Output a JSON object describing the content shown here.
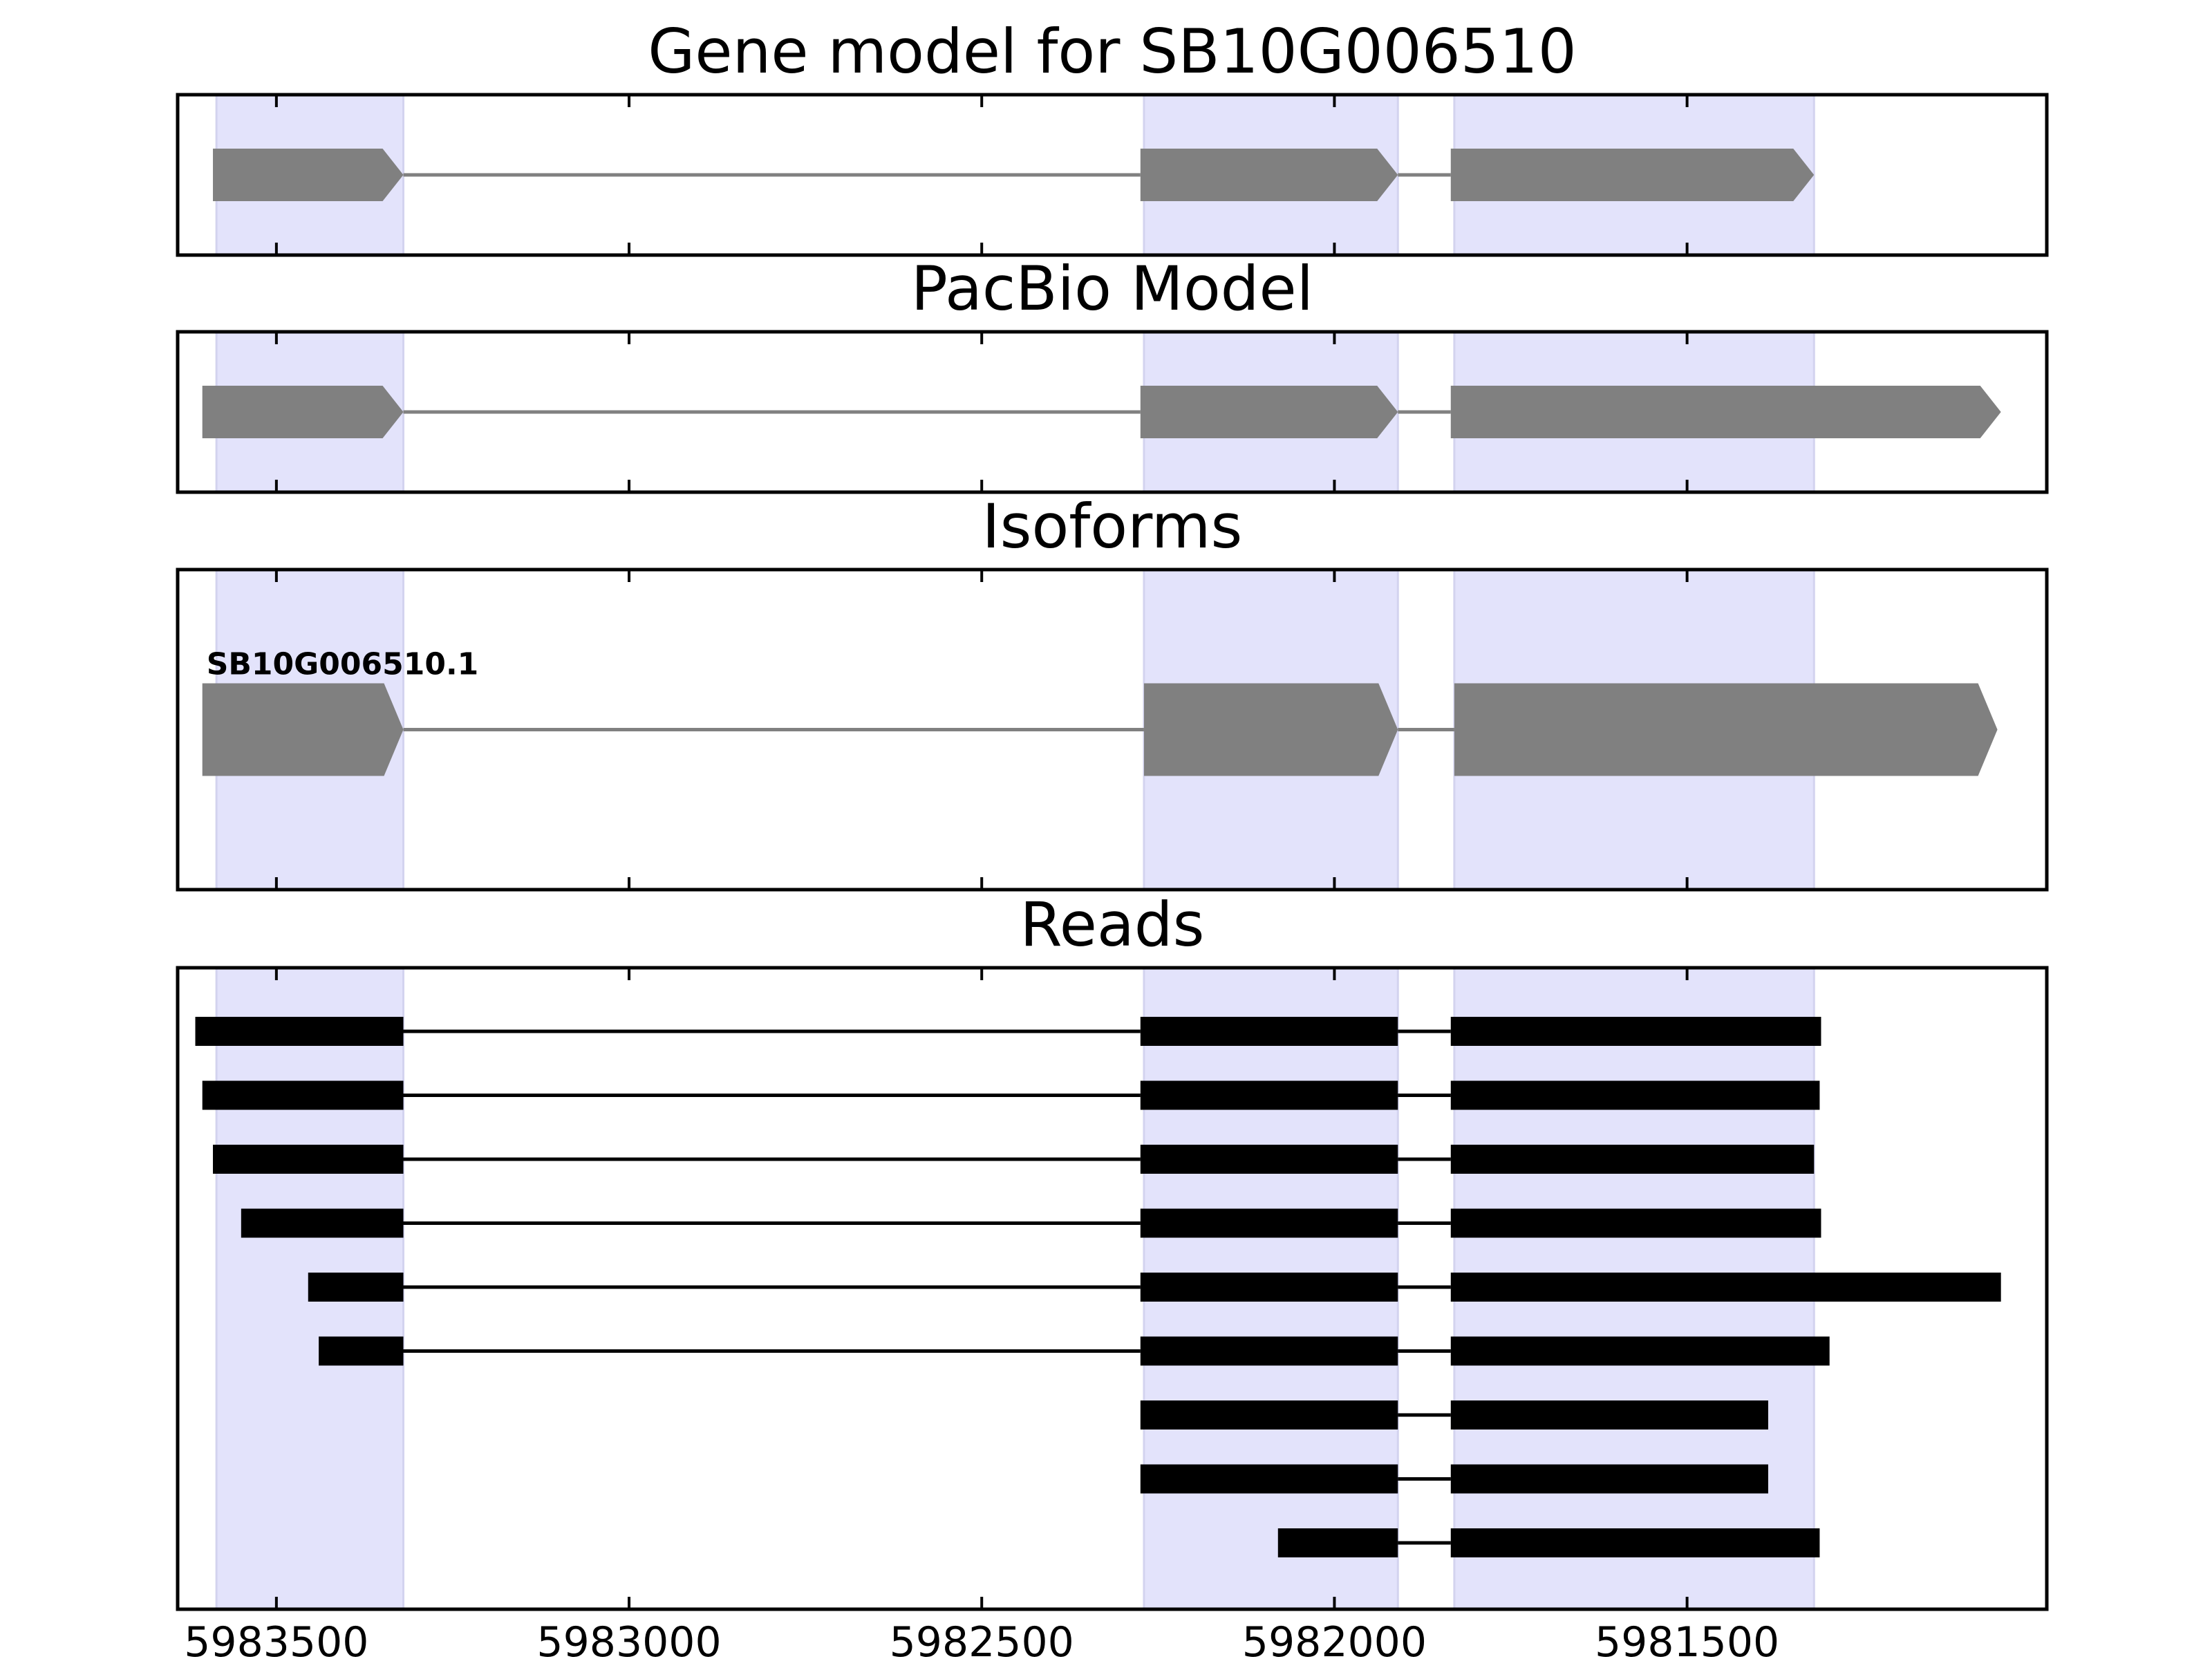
{
  "chart_data": {
    "type": "gene-structure",
    "xlim": [
      5983640,
      5980990
    ],
    "x_ticks": [
      5983500,
      5983000,
      5982500,
      5982000,
      5981500
    ],
    "x_tick_labels": [
      "5983500",
      "5983000",
      "5982500",
      "5982000",
      "5981500"
    ],
    "exon_bands": [
      [
        5983585,
        5983320
      ],
      [
        5982270,
        5981910
      ],
      [
        5981830,
        5981320
      ]
    ],
    "colors": {
      "band": "#e3e3fb",
      "model": "#808080",
      "reads": "#000000"
    },
    "panels": [
      {
        "title": "Gene model for SB10G006510",
        "kind": "model",
        "exons": [
          [
            5983590,
            5983320
          ],
          [
            5982275,
            5981910
          ],
          [
            5981835,
            5981320
          ]
        ]
      },
      {
        "title": "PacBio Model",
        "kind": "model",
        "exons": [
          [
            5983605,
            5983320
          ],
          [
            5982275,
            5981910
          ],
          [
            5981835,
            5981055
          ]
        ]
      },
      {
        "title": "Isoforms",
        "kind": "isoform",
        "isoforms": [
          {
            "label": "SB10G006510.1",
            "exons": [
              [
                5983605,
                5983320
              ],
              [
                5982270,
                5981910
              ],
              [
                5981830,
                5981060
              ]
            ]
          }
        ]
      },
      {
        "title": "Reads",
        "kind": "reads",
        "reads": [
          {
            "exons": [
              [
                5983615,
                5983320
              ],
              [
                5982275,
                5981910
              ],
              [
                5981835,
                5981310
              ]
            ]
          },
          {
            "exons": [
              [
                5983605,
                5983320
              ],
              [
                5982275,
                5981910
              ],
              [
                5981835,
                5981312
              ]
            ]
          },
          {
            "exons": [
              [
                5983590,
                5983320
              ],
              [
                5982275,
                5981910
              ],
              [
                5981835,
                5981320
              ]
            ]
          },
          {
            "exons": [
              [
                5983550,
                5983320
              ],
              [
                5982275,
                5981910
              ],
              [
                5981835,
                5981310
              ]
            ]
          },
          {
            "exons": [
              [
                5983455,
                5983320
              ],
              [
                5982275,
                5981910
              ],
              [
                5981835,
                5981055
              ]
            ]
          },
          {
            "exons": [
              [
                5983440,
                5983320
              ],
              [
                5982275,
                5981910
              ],
              [
                5981835,
                5981298
              ]
            ]
          },
          {
            "exons": [
              [
                5982275,
                5981910
              ],
              [
                5981835,
                5981385
              ]
            ]
          },
          {
            "exons": [
              [
                5982275,
                5981910
              ],
              [
                5981835,
                5981385
              ]
            ]
          },
          {
            "exons": [
              [
                5982080,
                5981910
              ],
              [
                5981835,
                5981312
              ]
            ]
          }
        ]
      }
    ]
  }
}
